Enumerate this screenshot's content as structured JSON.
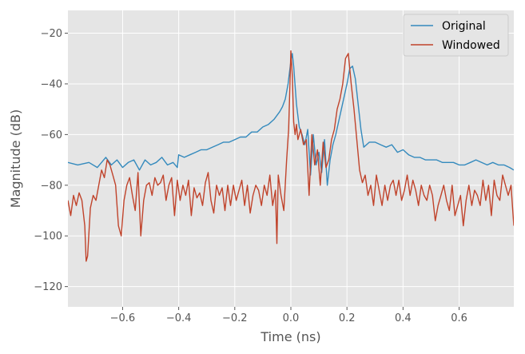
{
  "chart_data": {
    "type": "line",
    "title": "",
    "xlabel": "Time (ns)",
    "ylabel": "Magnitude (dB)",
    "xlim": [
      -0.795,
      0.795
    ],
    "ylim": [
      -128,
      -11
    ],
    "x_ticks": [
      -0.6,
      -0.4,
      -0.2,
      0.0,
      0.2,
      0.4,
      0.6
    ],
    "x_tick_labels": [
      "−0.6",
      "−0.4",
      "−0.2",
      "0.0",
      "0.2",
      "0.4",
      "0.6"
    ],
    "y_ticks": [
      -120,
      -100,
      -80,
      -60,
      -40,
      -20
    ],
    "y_tick_labels": [
      "−120",
      "−100",
      "−80",
      "−60",
      "−40",
      "−20"
    ],
    "grid": true,
    "background": "#e5e5e5",
    "legend_position": "top-right",
    "series": [
      {
        "name": "Original",
        "color": "#348abd",
        "x": [
          -0.795,
          -0.76,
          -0.72,
          -0.69,
          -0.66,
          -0.64,
          -0.62,
          -0.6,
          -0.58,
          -0.56,
          -0.54,
          -0.52,
          -0.5,
          -0.48,
          -0.46,
          -0.44,
          -0.42,
          -0.405,
          -0.4,
          -0.38,
          -0.36,
          -0.34,
          -0.32,
          -0.3,
          -0.28,
          -0.26,
          -0.24,
          -0.22,
          -0.2,
          -0.18,
          -0.16,
          -0.14,
          -0.12,
          -0.1,
          -0.08,
          -0.06,
          -0.04,
          -0.03,
          -0.02,
          -0.01,
          0.0,
          0.005,
          0.01,
          0.02,
          0.03,
          0.04,
          0.05,
          0.06,
          0.07,
          0.08,
          0.09,
          0.1,
          0.11,
          0.12,
          0.13,
          0.14,
          0.15,
          0.16,
          0.17,
          0.18,
          0.19,
          0.2,
          0.21,
          0.22,
          0.23,
          0.24,
          0.25,
          0.26,
          0.28,
          0.3,
          0.32,
          0.34,
          0.36,
          0.38,
          0.4,
          0.42,
          0.44,
          0.46,
          0.48,
          0.5,
          0.52,
          0.54,
          0.56,
          0.58,
          0.6,
          0.62,
          0.64,
          0.66,
          0.68,
          0.7,
          0.72,
          0.74,
          0.76,
          0.78,
          0.795
        ],
        "y": [
          -71,
          -72,
          -71,
          -73,
          -69,
          -72,
          -70,
          -73,
          -71,
          -70,
          -74,
          -70,
          -72,
          -71,
          -69,
          -72,
          -71,
          -73,
          -68,
          -69,
          -68,
          -67,
          -66,
          -66,
          -65,
          -64,
          -63,
          -63,
          -62,
          -61,
          -61,
          -59,
          -59,
          -57,
          -56,
          -54,
          -51,
          -49,
          -46,
          -40,
          -31,
          -28,
          -33,
          -48,
          -57,
          -60,
          -64,
          -58,
          -76,
          -60,
          -72,
          -67,
          -75,
          -62,
          -80,
          -70,
          -64,
          -60,
          -55,
          -50,
          -45,
          -40,
          -34,
          -33,
          -38,
          -48,
          -58,
          -65,
          -63,
          -63,
          -64,
          -65,
          -64,
          -67,
          -66,
          -68,
          -69,
          -69,
          -70,
          -70,
          -70,
          -71,
          -71,
          -71,
          -72,
          -72,
          -71,
          -70,
          -71,
          -72,
          -71,
          -72,
          -72,
          -73,
          -74
        ]
      },
      {
        "name": "Windowed",
        "color": "#c0432b",
        "x": [
          -0.795,
          -0.785,
          -0.775,
          -0.765,
          -0.755,
          -0.745,
          -0.735,
          -0.73,
          -0.725,
          -0.715,
          -0.705,
          -0.695,
          -0.685,
          -0.675,
          -0.665,
          -0.655,
          -0.645,
          -0.635,
          -0.625,
          -0.615,
          -0.605,
          -0.595,
          -0.585,
          -0.575,
          -0.565,
          -0.555,
          -0.545,
          -0.535,
          -0.525,
          -0.515,
          -0.505,
          -0.495,
          -0.485,
          -0.475,
          -0.465,
          -0.455,
          -0.445,
          -0.435,
          -0.425,
          -0.415,
          -0.405,
          -0.395,
          -0.385,
          -0.375,
          -0.365,
          -0.355,
          -0.345,
          -0.335,
          -0.325,
          -0.315,
          -0.305,
          -0.295,
          -0.285,
          -0.275,
          -0.265,
          -0.255,
          -0.245,
          -0.235,
          -0.225,
          -0.215,
          -0.205,
          -0.195,
          -0.185,
          -0.175,
          -0.165,
          -0.155,
          -0.145,
          -0.135,
          -0.125,
          -0.115,
          -0.105,
          -0.095,
          -0.085,
          -0.075,
          -0.065,
          -0.055,
          -0.05,
          -0.045,
          -0.035,
          -0.025,
          -0.015,
          -0.008,
          -0.003,
          0.0,
          0.005,
          0.01,
          0.015,
          0.02,
          0.025,
          0.035,
          0.045,
          0.055,
          0.065,
          0.075,
          0.085,
          0.095,
          0.105,
          0.115,
          0.125,
          0.135,
          0.145,
          0.155,
          0.165,
          0.175,
          0.185,
          0.195,
          0.205,
          0.215,
          0.225,
          0.235,
          0.245,
          0.255,
          0.265,
          0.275,
          0.285,
          0.295,
          0.305,
          0.315,
          0.325,
          0.335,
          0.345,
          0.355,
          0.365,
          0.375,
          0.385,
          0.395,
          0.405,
          0.415,
          0.425,
          0.435,
          0.445,
          0.455,
          0.465,
          0.475,
          0.485,
          0.495,
          0.505,
          0.515,
          0.525,
          0.535,
          0.545,
          0.555,
          0.565,
          0.575,
          0.585,
          0.595,
          0.605,
          0.615,
          0.625,
          0.635,
          0.645,
          0.655,
          0.665,
          0.675,
          0.685,
          0.695,
          0.705,
          0.715,
          0.725,
          0.735,
          0.745,
          0.755,
          0.765,
          0.775,
          0.785,
          0.795
        ],
        "y": [
          -86,
          -92,
          -84,
          -88,
          -83,
          -86,
          -96,
          -110,
          -108,
          -89,
          -84,
          -86,
          -80,
          -74,
          -77,
          -70,
          -72,
          -76,
          -80,
          -96,
          -100,
          -86,
          -80,
          -77,
          -84,
          -90,
          -75,
          -100,
          -86,
          -80,
          -79,
          -84,
          -77,
          -80,
          -79,
          -76,
          -86,
          -80,
          -77,
          -92,
          -78,
          -86,
          -80,
          -84,
          -78,
          -92,
          -81,
          -85,
          -83,
          -88,
          -79,
          -75,
          -86,
          -91,
          -80,
          -84,
          -81,
          -90,
          -80,
          -88,
          -80,
          -86,
          -82,
          -78,
          -88,
          -80,
          -91,
          -84,
          -80,
          -82,
          -88,
          -80,
          -84,
          -76,
          -88,
          -82,
          -103,
          -76,
          -84,
          -90,
          -70,
          -58,
          -40,
          -27,
          -37,
          -55,
          -60,
          -56,
          -62,
          -58,
          -64,
          -62,
          -84,
          -60,
          -72,
          -66,
          -80,
          -63,
          -73,
          -70,
          -62,
          -58,
          -50,
          -46,
          -40,
          -30,
          -28,
          -40,
          -50,
          -62,
          -74,
          -79,
          -76,
          -84,
          -80,
          -88,
          -76,
          -82,
          -88,
          -80,
          -86,
          -80,
          -78,
          -84,
          -78,
          -86,
          -82,
          -76,
          -84,
          -78,
          -82,
          -88,
          -80,
          -84,
          -86,
          -80,
          -84,
          -94,
          -88,
          -84,
          -80,
          -86,
          -90,
          -80,
          -92,
          -88,
          -84,
          -96,
          -86,
          -80,
          -88,
          -82,
          -84,
          -88,
          -78,
          -86,
          -80,
          -92,
          -78,
          -84,
          -86,
          -76,
          -80,
          -84,
          -80,
          -96
        ]
      }
    ]
  }
}
